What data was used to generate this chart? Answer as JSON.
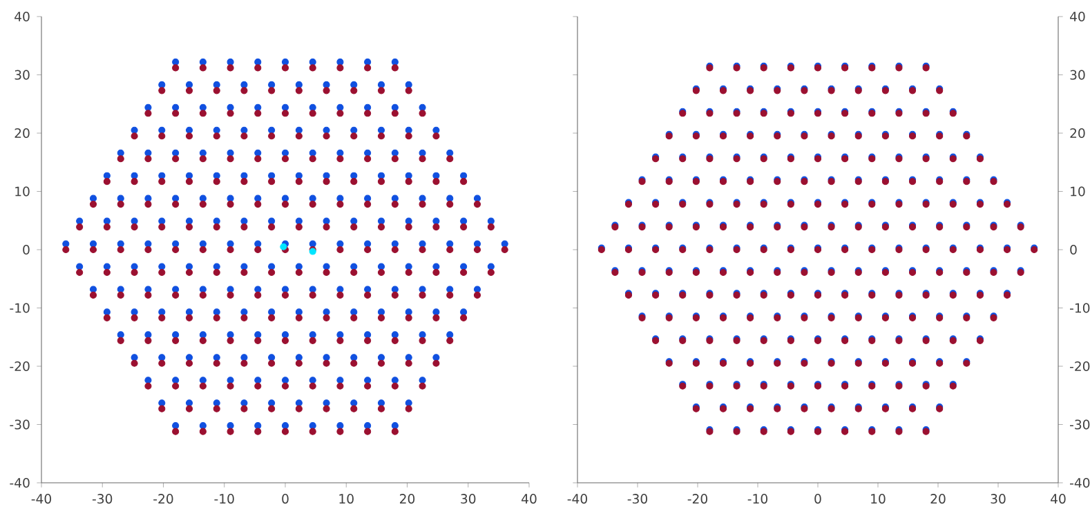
{
  "chart_data": [
    {
      "type": "scatter",
      "marker": "circle",
      "grid": false,
      "legend": false,
      "xlim": [
        -40,
        40
      ],
      "ylim": [
        -40,
        40
      ],
      "xticks": [
        -40,
        -30,
        -20,
        -10,
        0,
        10,
        20,
        30,
        40
      ],
      "yticks": [
        -40,
        -30,
        -20,
        -10,
        0,
        10,
        20,
        30,
        40
      ],
      "x": [
        -18,
        -13.5,
        -9,
        -4.5,
        0,
        4.5,
        9,
        13.5,
        18,
        -20.25,
        -15.75,
        -11.25,
        -6.75,
        -2.25,
        2.25,
        6.75,
        11.25,
        15.75,
        20.25,
        -22.5,
        -18,
        -13.5,
        -9,
        -4.5,
        0,
        4.5,
        9,
        13.5,
        18,
        22.5,
        -24.75,
        -20.25,
        -15.75,
        -11.25,
        -6.75,
        -2.25,
        2.25,
        6.75,
        11.25,
        15.75,
        20.25,
        24.75,
        -27,
        -22.5,
        -18,
        -13.5,
        -9,
        -4.5,
        0,
        4.5,
        9,
        13.5,
        18,
        22.5,
        27,
        -29.25,
        -24.75,
        -20.25,
        -15.75,
        -11.25,
        -6.75,
        -2.25,
        2.25,
        6.75,
        11.25,
        15.75,
        20.25,
        24.75,
        29.25,
        -31.5,
        -27,
        -22.5,
        -18,
        -13.5,
        -9,
        -4.5,
        0,
        4.5,
        9,
        13.5,
        18,
        22.5,
        27,
        31.5,
        -33.75,
        -29.25,
        -24.75,
        -20.25,
        -15.75,
        -11.25,
        -6.75,
        -2.25,
        2.25,
        6.75,
        11.25,
        15.75,
        20.25,
        24.75,
        29.25,
        33.75,
        -36,
        -31.5,
        -27,
        -22.5,
        -18,
        -13.5,
        -9,
        -4.5,
        0,
        4.5,
        9,
        13.5,
        18,
        22.5,
        27,
        31.5,
        36,
        -33.75,
        -29.25,
        -24.75,
        -20.25,
        -15.75,
        -11.25,
        -6.75,
        -2.25,
        2.25,
        6.75,
        11.25,
        15.75,
        20.25,
        24.75,
        29.25,
        33.75,
        -31.5,
        -27,
        -22.5,
        -18,
        -13.5,
        -9,
        -4.5,
        0,
        4.5,
        9,
        13.5,
        18,
        22.5,
        27,
        31.5,
        -29.25,
        -24.75,
        -20.25,
        -15.75,
        -11.25,
        -6.75,
        -2.25,
        2.25,
        6.75,
        11.25,
        15.75,
        20.25,
        24.75,
        29.25,
        -27,
        -22.5,
        -18,
        -13.5,
        -9,
        -4.5,
        0,
        4.5,
        9,
        13.5,
        18,
        22.5,
        27,
        -24.75,
        -20.25,
        -15.75,
        -11.25,
        -6.75,
        -2.25,
        2.25,
        6.75,
        11.25,
        15.75,
        20.25,
        24.75,
        -22.5,
        -18,
        -13.5,
        -9,
        -4.5,
        0,
        4.5,
        9,
        13.5,
        18,
        22.5,
        -20.25,
        -15.75,
        -11.25,
        -6.75,
        -2.25,
        2.25,
        6.75,
        11.25,
        15.75,
        20.25,
        -18,
        -13.5,
        -9,
        -4.5,
        0,
        4.5,
        9,
        13.5,
        18
      ],
      "series": [
        {
          "color": "#1050e0",
          "values": [
            32.2,
            32.2,
            32.2,
            32.2,
            32.2,
            32.2,
            32.2,
            32.2,
            32.2,
            28.3,
            28.3,
            28.3,
            28.3,
            28.3,
            28.3,
            28.3,
            28.3,
            28.3,
            28.3,
            24.4,
            24.4,
            24.4,
            24.4,
            24.4,
            24.4,
            24.4,
            24.4,
            24.4,
            24.4,
            24.4,
            20.5,
            20.5,
            20.5,
            20.5,
            20.5,
            20.5,
            20.5,
            20.5,
            20.5,
            20.5,
            20.5,
            20.5,
            16.6,
            16.6,
            16.6,
            16.6,
            16.6,
            16.6,
            16.6,
            16.6,
            16.6,
            16.6,
            16.6,
            16.6,
            16.6,
            12.7,
            12.7,
            12.7,
            12.7,
            12.7,
            12.7,
            12.7,
            12.7,
            12.7,
            12.7,
            12.7,
            12.7,
            12.7,
            12.7,
            8.8,
            8.8,
            8.8,
            8.8,
            8.8,
            8.8,
            8.8,
            8.8,
            8.8,
            8.8,
            8.8,
            8.8,
            8.8,
            8.8,
            8.8,
            4.9,
            4.9,
            4.9,
            4.9,
            4.9,
            4.9,
            4.9,
            4.9,
            4.9,
            4.9,
            4.9,
            4.9,
            4.9,
            4.9,
            4.9,
            4.9,
            1,
            1,
            1,
            1,
            1,
            1,
            1,
            1,
            1,
            1,
            1,
            1,
            1,
            1,
            1,
            1,
            1,
            -2.9,
            -2.9,
            -2.9,
            -2.9,
            -2.9,
            -2.9,
            -2.9,
            -2.9,
            -2.9,
            -2.9,
            -2.9,
            -2.9,
            -2.9,
            -2.9,
            -2.9,
            -2.9,
            -6.8,
            -6.8,
            -6.8,
            -6.8,
            -6.8,
            -6.8,
            -6.8,
            -6.8,
            -6.8,
            -6.8,
            -6.8,
            -6.8,
            -6.8,
            -6.8,
            -6.8,
            -10.7,
            -10.7,
            -10.7,
            -10.7,
            -10.7,
            -10.7,
            -10.7,
            -10.7,
            -10.7,
            -10.7,
            -10.7,
            -10.7,
            -10.7,
            -10.7,
            -14.6,
            -14.6,
            -14.6,
            -14.6,
            -14.6,
            -14.6,
            -14.6,
            -14.6,
            -14.6,
            -14.6,
            -14.6,
            -14.6,
            -14.6,
            -18.5,
            -18.5,
            -18.5,
            -18.5,
            -18.5,
            -18.5,
            -18.5,
            -18.5,
            -18.5,
            -18.5,
            -18.5,
            -18.5,
            -22.4,
            -22.4,
            -22.4,
            -22.4,
            -22.4,
            -22.4,
            -22.4,
            -22.4,
            -22.4,
            -22.4,
            -22.4,
            -26.3,
            -26.3,
            -26.3,
            -26.3,
            -26.3,
            -26.3,
            -26.3,
            -26.3,
            -26.3,
            -26.3,
            -30.2,
            -30.2,
            -30.2,
            -30.2,
            -30.2,
            -30.2,
            -30.2,
            -30.2,
            -30.2
          ]
        },
        {
          "color": "#9b1030",
          "values": [
            31.2,
            31.2,
            31.2,
            31.2,
            31.2,
            31.2,
            31.2,
            31.2,
            31.2,
            27.3,
            27.3,
            27.3,
            27.3,
            27.3,
            27.3,
            27.3,
            27.3,
            27.3,
            27.3,
            23.4,
            23.4,
            23.4,
            23.4,
            23.4,
            23.4,
            23.4,
            23.4,
            23.4,
            23.4,
            23.4,
            19.5,
            19.5,
            19.5,
            19.5,
            19.5,
            19.5,
            19.5,
            19.5,
            19.5,
            19.5,
            19.5,
            19.5,
            15.6,
            15.6,
            15.6,
            15.6,
            15.6,
            15.6,
            15.6,
            15.6,
            15.6,
            15.6,
            15.6,
            15.6,
            15.6,
            11.7,
            11.7,
            11.7,
            11.7,
            11.7,
            11.7,
            11.7,
            11.7,
            11.7,
            11.7,
            11.7,
            11.7,
            11.7,
            11.7,
            7.8,
            7.8,
            7.8,
            7.8,
            7.8,
            7.8,
            7.8,
            7.8,
            7.8,
            7.8,
            7.8,
            7.8,
            7.8,
            7.8,
            7.8,
            3.9,
            3.9,
            3.9,
            3.9,
            3.9,
            3.9,
            3.9,
            3.9,
            3.9,
            3.9,
            3.9,
            3.9,
            3.9,
            3.9,
            3.9,
            3.9,
            0,
            0,
            0,
            0,
            0,
            0,
            0,
            0,
            0,
            0,
            0,
            0,
            0,
            0,
            0,
            0,
            0,
            -3.9,
            -3.9,
            -3.9,
            -3.9,
            -3.9,
            -3.9,
            -3.9,
            -3.9,
            -3.9,
            -3.9,
            -3.9,
            -3.9,
            -3.9,
            -3.9,
            -3.9,
            -3.9,
            -7.8,
            -7.8,
            -7.8,
            -7.8,
            -7.8,
            -7.8,
            -7.8,
            -7.8,
            -7.8,
            -7.8,
            -7.8,
            -7.8,
            -7.8,
            -7.8,
            -7.8,
            -11.7,
            -11.7,
            -11.7,
            -11.7,
            -11.7,
            -11.7,
            -11.7,
            -11.7,
            -11.7,
            -11.7,
            -11.7,
            -11.7,
            -11.7,
            -11.7,
            -15.6,
            -15.6,
            -15.6,
            -15.6,
            -15.6,
            -15.6,
            -15.6,
            -15.6,
            -15.6,
            -15.6,
            -15.6,
            -15.6,
            -15.6,
            -19.5,
            -19.5,
            -19.5,
            -19.5,
            -19.5,
            -19.5,
            -19.5,
            -19.5,
            -19.5,
            -19.5,
            -19.5,
            -19.5,
            -23.4,
            -23.4,
            -23.4,
            -23.4,
            -23.4,
            -23.4,
            -23.4,
            -23.4,
            -23.4,
            -23.4,
            -23.4,
            -27.3,
            -27.3,
            -27.3,
            -27.3,
            -27.3,
            -27.3,
            -27.3,
            -27.3,
            -27.3,
            -27.3,
            -31.2,
            -31.2,
            -31.2,
            -31.2,
            -31.2,
            -31.2,
            -31.2,
            -31.2,
            -31.2
          ]
        },
        {
          "color": "#00e5ff",
          "x": [
            -0.3,
            4.5
          ],
          "values": [
            0.5,
            -0.3
          ]
        }
      ]
    },
    {
      "type": "scatter",
      "marker": "circle",
      "grid": false,
      "legend": false,
      "xlim": [
        -40,
        40
      ],
      "ylim": [
        -40,
        40
      ],
      "xticks": [
        -40,
        -30,
        -20,
        -10,
        0,
        10,
        20,
        30,
        40
      ],
      "yticks": [
        -40,
        -30,
        -20,
        -10,
        0,
        10,
        20,
        30,
        40
      ],
      "x": [
        -18,
        -13.5,
        -9,
        -4.5,
        0,
        4.5,
        9,
        13.5,
        18,
        -20.25,
        -15.75,
        -11.25,
        -6.75,
        -2.25,
        2.25,
        6.75,
        11.25,
        15.75,
        20.25,
        -22.5,
        -18,
        -13.5,
        -9,
        -4.5,
        0,
        4.5,
        9,
        13.5,
        18,
        22.5,
        -24.75,
        -20.25,
        -15.75,
        -11.25,
        -6.75,
        -2.25,
        2.25,
        6.75,
        11.25,
        15.75,
        20.25,
        24.75,
        -27,
        -22.5,
        -18,
        -13.5,
        -9,
        -4.5,
        0,
        4.5,
        9,
        13.5,
        18,
        22.5,
        27,
        -29.25,
        -24.75,
        -20.25,
        -15.75,
        -11.25,
        -6.75,
        -2.25,
        2.25,
        6.75,
        11.25,
        15.75,
        20.25,
        24.75,
        29.25,
        -31.5,
        -27,
        -22.5,
        -18,
        -13.5,
        -9,
        -4.5,
        0,
        4.5,
        9,
        13.5,
        18,
        22.5,
        27,
        31.5,
        -33.75,
        -29.25,
        -24.75,
        -20.25,
        -15.75,
        -11.25,
        -6.75,
        -2.25,
        2.25,
        6.75,
        11.25,
        15.75,
        20.25,
        24.75,
        29.25,
        33.75,
        -36,
        -31.5,
        -27,
        -22.5,
        -18,
        -13.5,
        -9,
        -4.5,
        0,
        4.5,
        9,
        13.5,
        18,
        22.5,
        27,
        31.5,
        36,
        -33.75,
        -29.25,
        -24.75,
        -20.25,
        -15.75,
        -11.25,
        -6.75,
        -2.25,
        2.25,
        6.75,
        11.25,
        15.75,
        20.25,
        24.75,
        29.25,
        33.75,
        -31.5,
        -27,
        -22.5,
        -18,
        -13.5,
        -9,
        -4.5,
        0,
        4.5,
        9,
        13.5,
        18,
        22.5,
        27,
        31.5,
        -29.25,
        -24.75,
        -20.25,
        -15.75,
        -11.25,
        -6.75,
        -2.25,
        2.25,
        6.75,
        11.25,
        15.75,
        20.25,
        24.75,
        29.25,
        -27,
        -22.5,
        -18,
        -13.5,
        -9,
        -4.5,
        0,
        4.5,
        9,
        13.5,
        18,
        22.5,
        27,
        -24.75,
        -20.25,
        -15.75,
        -11.25,
        -6.75,
        -2.25,
        2.25,
        6.75,
        11.25,
        15.75,
        20.25,
        24.75,
        -22.5,
        -18,
        -13.5,
        -9,
        -4.5,
        0,
        4.5,
        9,
        13.5,
        18,
        22.5,
        -20.25,
        -15.75,
        -11.25,
        -6.75,
        -2.25,
        2.25,
        6.75,
        11.25,
        15.75,
        20.25,
        -18,
        -13.5,
        -9,
        -4.5,
        0,
        4.5,
        9,
        13.5,
        18
      ],
      "series": [
        {
          "color": "#1050e0",
          "values": [
            31.5,
            31.5,
            31.5,
            31.5,
            31.5,
            31.5,
            31.5,
            31.5,
            31.5,
            27.6,
            27.6,
            27.6,
            27.6,
            27.6,
            27.6,
            27.6,
            27.6,
            27.6,
            27.6,
            23.7,
            23.7,
            23.7,
            23.7,
            23.7,
            23.7,
            23.7,
            23.7,
            23.7,
            23.7,
            23.7,
            19.8,
            19.8,
            19.8,
            19.8,
            19.8,
            19.8,
            19.8,
            19.8,
            19.8,
            19.8,
            19.8,
            19.8,
            15.9,
            15.9,
            15.9,
            15.9,
            15.9,
            15.9,
            15.9,
            15.9,
            15.9,
            15.9,
            15.9,
            15.9,
            15.9,
            12,
            12,
            12,
            12,
            12,
            12,
            12,
            12,
            12,
            12,
            12,
            12,
            12,
            12,
            8.1,
            8.1,
            8.1,
            8.1,
            8.1,
            8.1,
            8.1,
            8.1,
            8.1,
            8.1,
            8.1,
            8.1,
            8.1,
            8.1,
            8.1,
            4.2,
            4.2,
            4.2,
            4.2,
            4.2,
            4.2,
            4.2,
            4.2,
            4.2,
            4.2,
            4.2,
            4.2,
            4.2,
            4.2,
            4.2,
            4.2,
            0.3,
            0.3,
            0.3,
            0.3,
            0.3,
            0.3,
            0.3,
            0.3,
            0.3,
            0.3,
            0.3,
            0.3,
            0.3,
            0.3,
            0.3,
            0.3,
            0.3,
            -3.6,
            -3.6,
            -3.6,
            -3.6,
            -3.6,
            -3.6,
            -3.6,
            -3.6,
            -3.6,
            -3.6,
            -3.6,
            -3.6,
            -3.6,
            -3.6,
            -3.6,
            -3.6,
            -7.5,
            -7.5,
            -7.5,
            -7.5,
            -7.5,
            -7.5,
            -7.5,
            -7.5,
            -7.5,
            -7.5,
            -7.5,
            -7.5,
            -7.5,
            -7.5,
            -7.5,
            -11.4,
            -11.4,
            -11.4,
            -11.4,
            -11.4,
            -11.4,
            -11.4,
            -11.4,
            -11.4,
            -11.4,
            -11.4,
            -11.4,
            -11.4,
            -11.4,
            -15.3,
            -15.3,
            -15.3,
            -15.3,
            -15.3,
            -15.3,
            -15.3,
            -15.3,
            -15.3,
            -15.3,
            -15.3,
            -15.3,
            -15.3,
            -19.2,
            -19.2,
            -19.2,
            -19.2,
            -19.2,
            -19.2,
            -19.2,
            -19.2,
            -19.2,
            -19.2,
            -19.2,
            -19.2,
            -23.1,
            -23.1,
            -23.1,
            -23.1,
            -23.1,
            -23.1,
            -23.1,
            -23.1,
            -23.1,
            -23.1,
            -23.1,
            -27,
            -27,
            -27,
            -27,
            -27,
            -27,
            -27,
            -27,
            -27,
            -27,
            -30.9,
            -30.9,
            -30.9,
            -30.9,
            -30.9,
            -30.9,
            -30.9,
            -30.9,
            -30.9
          ]
        },
        {
          "color": "#9b1030",
          "values": [
            31.2,
            31.2,
            31.2,
            31.2,
            31.2,
            31.2,
            31.2,
            31.2,
            31.2,
            27.3,
            27.3,
            27.3,
            27.3,
            27.3,
            27.3,
            27.3,
            27.3,
            27.3,
            27.3,
            23.4,
            23.4,
            23.4,
            23.4,
            23.4,
            23.4,
            23.4,
            23.4,
            23.4,
            23.4,
            23.4,
            19.5,
            19.5,
            19.5,
            19.5,
            19.5,
            19.5,
            19.5,
            19.5,
            19.5,
            19.5,
            19.5,
            19.5,
            15.6,
            15.6,
            15.6,
            15.6,
            15.6,
            15.6,
            15.6,
            15.6,
            15.6,
            15.6,
            15.6,
            15.6,
            15.6,
            11.7,
            11.7,
            11.7,
            11.7,
            11.7,
            11.7,
            11.7,
            11.7,
            11.7,
            11.7,
            11.7,
            11.7,
            11.7,
            11.7,
            7.8,
            7.8,
            7.8,
            7.8,
            7.8,
            7.8,
            7.8,
            7.8,
            7.8,
            7.8,
            7.8,
            7.8,
            7.8,
            7.8,
            7.8,
            3.9,
            3.9,
            3.9,
            3.9,
            3.9,
            3.9,
            3.9,
            3.9,
            3.9,
            3.9,
            3.9,
            3.9,
            3.9,
            3.9,
            3.9,
            3.9,
            0,
            0,
            0,
            0,
            0,
            0,
            0,
            0,
            0,
            0,
            0,
            0,
            0,
            0,
            0,
            0,
            0,
            -3.9,
            -3.9,
            -3.9,
            -3.9,
            -3.9,
            -3.9,
            -3.9,
            -3.9,
            -3.9,
            -3.9,
            -3.9,
            -3.9,
            -3.9,
            -3.9,
            -3.9,
            -3.9,
            -7.8,
            -7.8,
            -7.8,
            -7.8,
            -7.8,
            -7.8,
            -7.8,
            -7.8,
            -7.8,
            -7.8,
            -7.8,
            -7.8,
            -7.8,
            -7.8,
            -7.8,
            -11.7,
            -11.7,
            -11.7,
            -11.7,
            -11.7,
            -11.7,
            -11.7,
            -11.7,
            -11.7,
            -11.7,
            -11.7,
            -11.7,
            -11.7,
            -11.7,
            -15.6,
            -15.6,
            -15.6,
            -15.6,
            -15.6,
            -15.6,
            -15.6,
            -15.6,
            -15.6,
            -15.6,
            -15.6,
            -15.6,
            -15.6,
            -19.5,
            -19.5,
            -19.5,
            -19.5,
            -19.5,
            -19.5,
            -19.5,
            -19.5,
            -19.5,
            -19.5,
            -19.5,
            -19.5,
            -23.4,
            -23.4,
            -23.4,
            -23.4,
            -23.4,
            -23.4,
            -23.4,
            -23.4,
            -23.4,
            -23.4,
            -23.4,
            -27.3,
            -27.3,
            -27.3,
            -27.3,
            -27.3,
            -27.3,
            -27.3,
            -27.3,
            -27.3,
            -27.3,
            -31.2,
            -31.2,
            -31.2,
            -31.2,
            -31.2,
            -31.2,
            -31.2,
            -31.2,
            -31.2
          ]
        }
      ]
    }
  ]
}
